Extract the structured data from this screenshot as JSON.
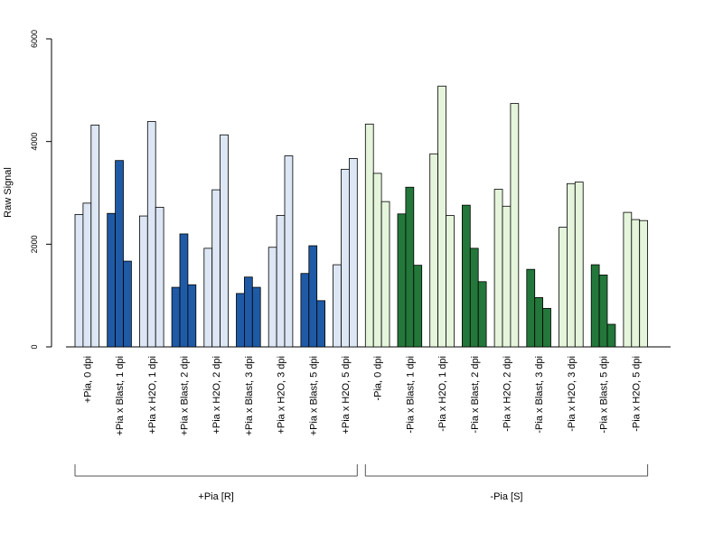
{
  "chart_data": {
    "type": "bar",
    "ylabel": "Raw Signal",
    "ylim": [
      0,
      6000
    ],
    "yticks": [
      "0",
      "2000",
      "4000",
      "6000"
    ],
    "grid": false,
    "categories": [
      "+Pia, 0 dpi",
      "+Pia x Blast, 1 dpi",
      "+Pia x H2O, 1 dpi",
      "+Pia x Blast, 2 dpi",
      "+Pia x H2O, 2 dpi",
      "+Pia x Blast, 3 dpi",
      "+Pia x H2O, 3 dpi",
      "+Pia x Blast, 5 dpi",
      "+Pia x H2O, 5 dpi",
      "-Pia, 0 dpi",
      "-Pia x Blast, 1 dpi",
      "-Pia x H2O, 1 dpi",
      "-Pia x Blast, 2 dpi",
      "-Pia x H2O, 2 dpi",
      "-Pia x Blast, 3 dpi",
      "-Pia x H2O, 3 dpi",
      "-Pia x Blast, 5 dpi",
      "-Pia x H2O, 5 dpi"
    ],
    "replicates": [
      [
        2580,
        2800,
        4320
      ],
      [
        2600,
        3630,
        1670
      ],
      [
        2550,
        4390,
        2720
      ],
      [
        1160,
        2200,
        1210
      ],
      [
        1920,
        3060,
        4130
      ],
      [
        1040,
        1360,
        1160
      ],
      [
        1940,
        2560,
        3720
      ],
      [
        1430,
        1970,
        900
      ],
      [
        1600,
        3460,
        3670
      ],
      [
        4340,
        3380,
        2830
      ],
      [
        2590,
        3110,
        1590
      ],
      [
        3760,
        5080,
        2560
      ],
      [
        2760,
        1920,
        1270
      ],
      [
        3070,
        2740,
        4740
      ],
      [
        1510,
        960,
        750
      ],
      [
        2330,
        3180,
        3210
      ],
      [
        1600,
        1400,
        440
      ],
      [
        2620,
        2480,
        2460
      ]
    ],
    "bar_colors": [
      "#dce6f4",
      "#1f5aa6",
      "#dce6f4",
      "#1f5aa6",
      "#dce6f4",
      "#1f5aa6",
      "#dce6f4",
      "#1f5aa6",
      "#dce6f4",
      "#e5f5dc",
      "#23773a",
      "#e5f5dc",
      "#23773a",
      "#e5f5dc",
      "#23773a",
      "#e5f5dc",
      "#23773a",
      "#e5f5dc"
    ],
    "groups": [
      {
        "label": "+Pia [R]",
        "from": 0,
        "to": 8
      },
      {
        "label": "-Pia [S]",
        "from": 9,
        "to": 17
      }
    ]
  }
}
